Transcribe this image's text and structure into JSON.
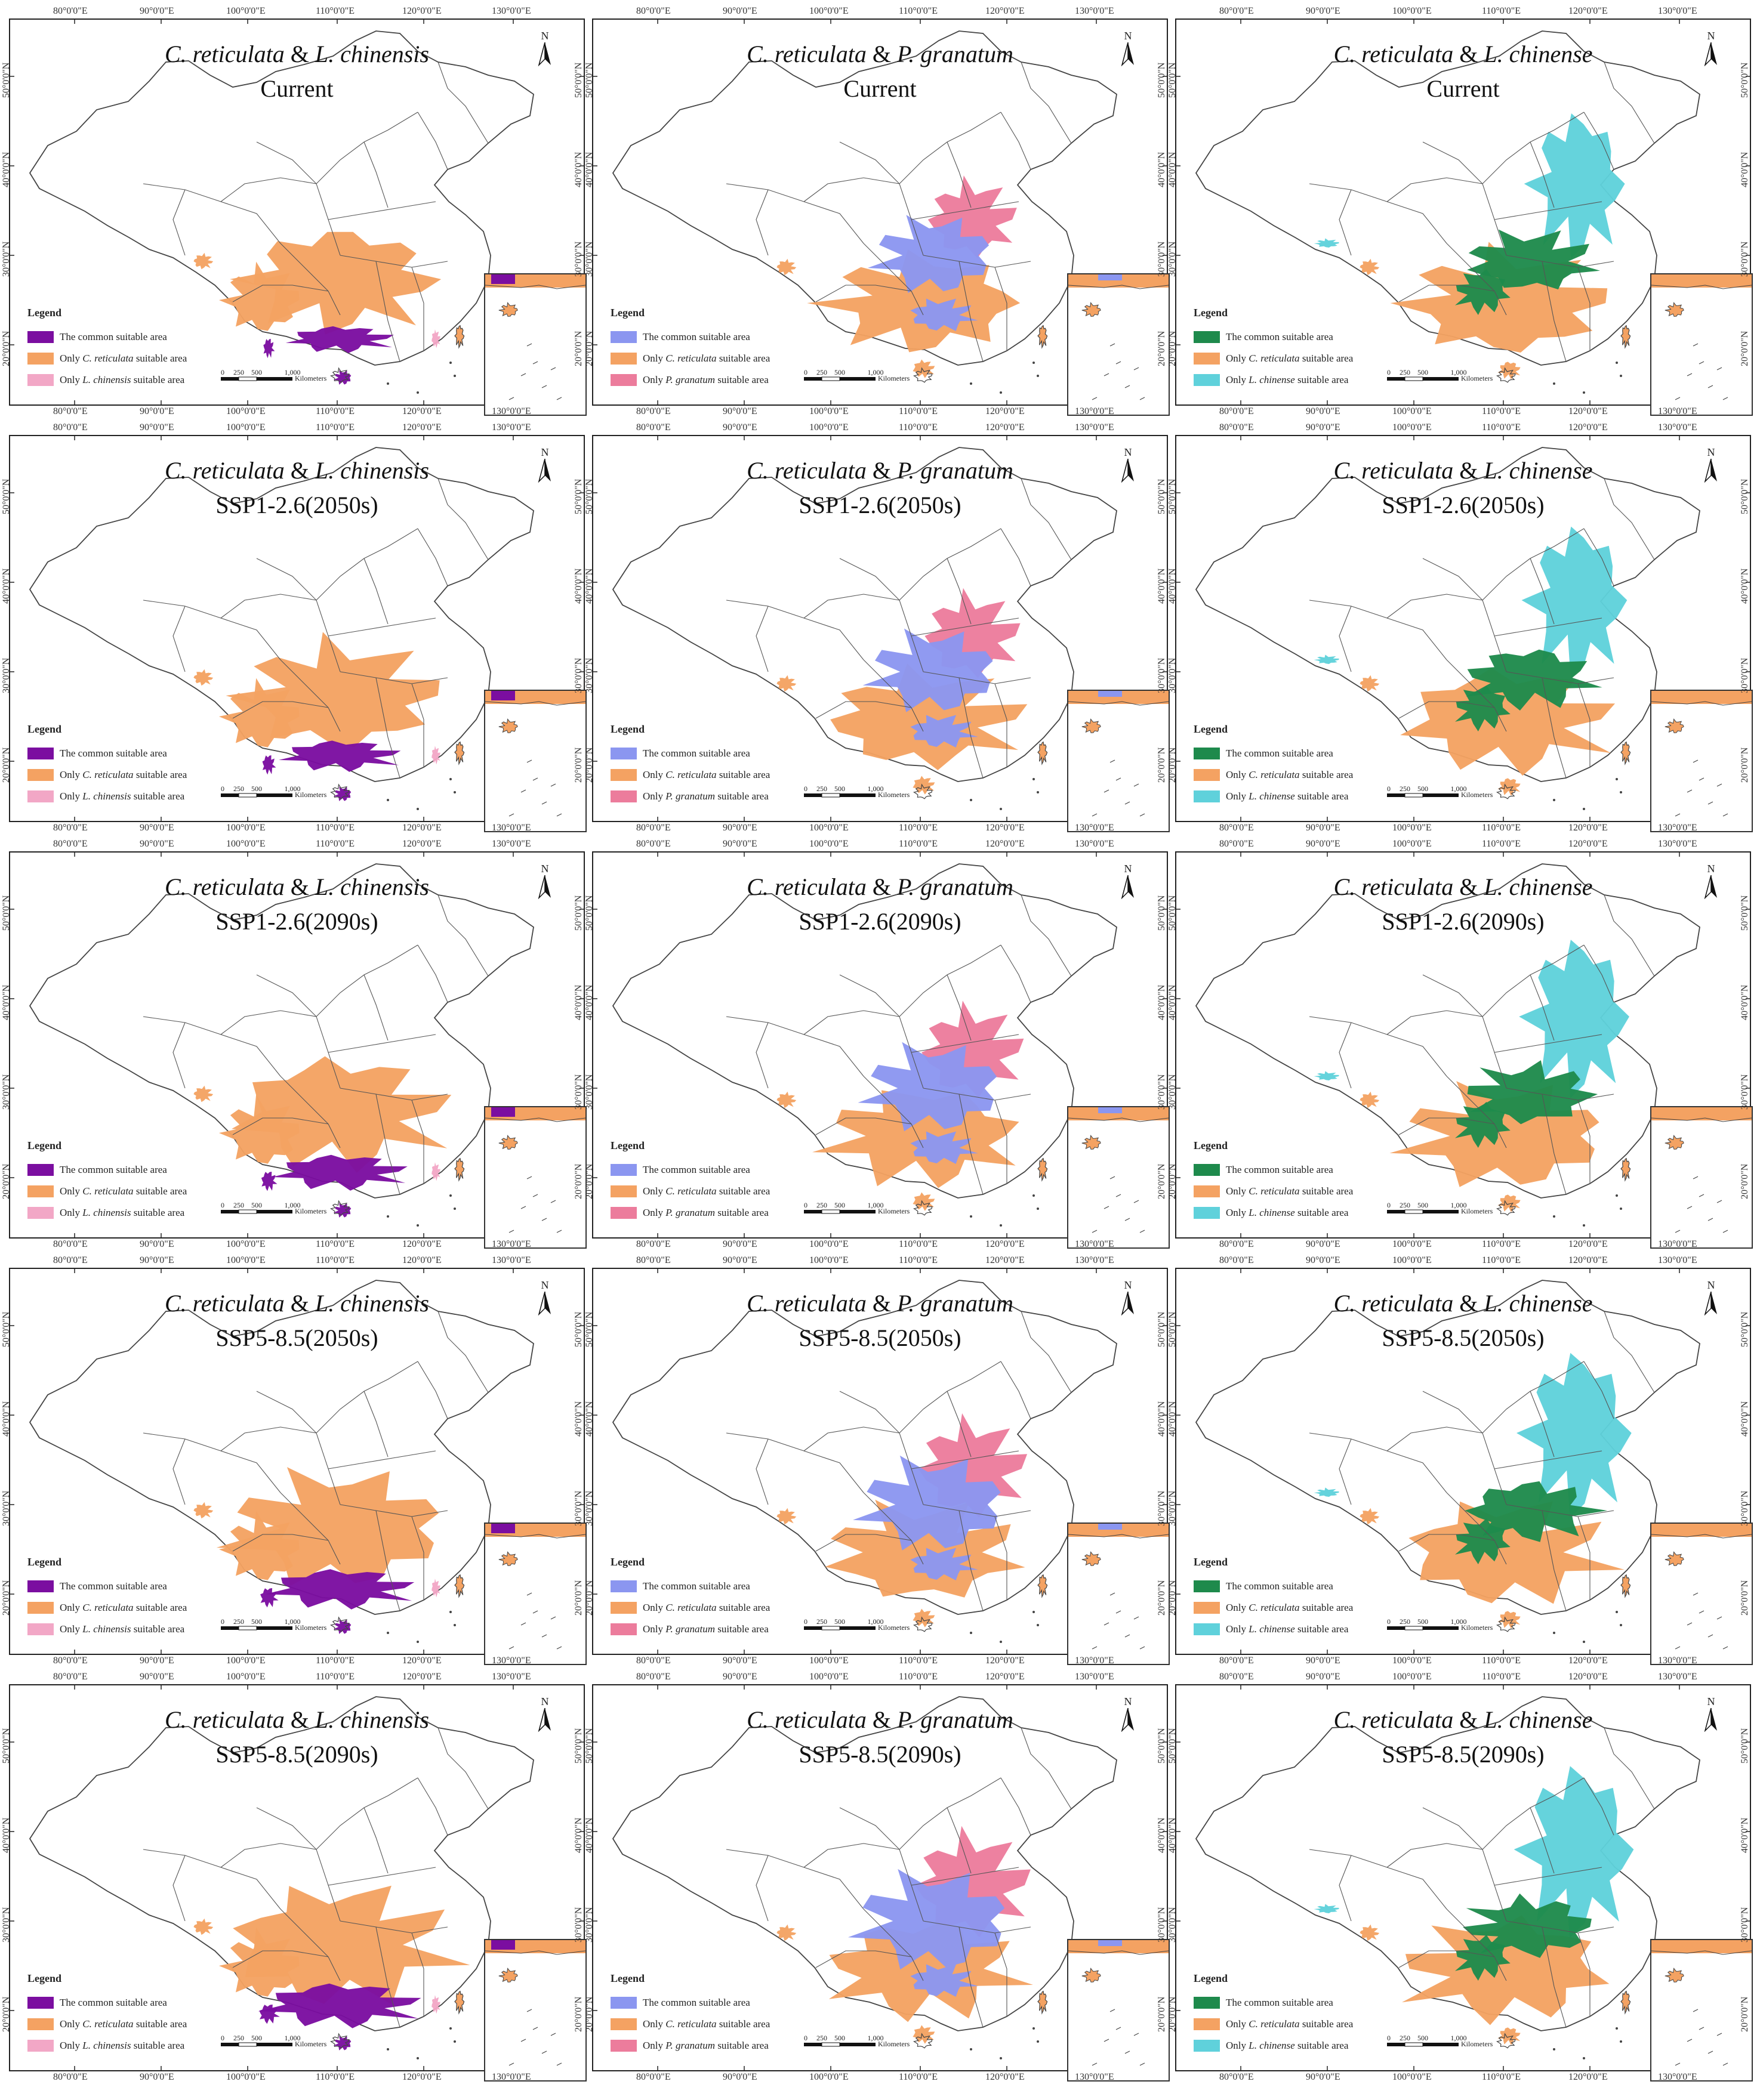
{
  "map_labels": {
    "lon_ticks": [
      "80°0'0\"E",
      "90°0'0\"E",
      "100°0'0\"E",
      "110°0'0\"E",
      "120°0'0\"E",
      "130°0'0\"E"
    ],
    "lat_ticks": [
      "50°0'0\"N",
      "40°0'0\"N",
      "30°0'0\"N",
      "20°0'0\"N"
    ],
    "north_label": "N",
    "legend_title": "Legend",
    "common_label": "The common suitable area",
    "scale_ticks": [
      "0",
      "250",
      "500",
      "1,000"
    ],
    "scale_unit": "Kilometers"
  },
  "species_pairs": [
    {
      "title_a": "C. reticulata",
      "amp": "&",
      "title_b": "L. chinensis",
      "legend_only_a_prefix": "Only",
      "legend_only_a_name": "C. reticulata",
      "legend_only_a_suffix": "suitable area",
      "legend_only_b_prefix": "Only",
      "legend_only_b_name": "L. chinensis",
      "legend_only_b_suffix": "suitable area",
      "colors": {
        "common": "#7B0EA0",
        "only_a": "#F4A262",
        "only_b": "#F2A7C6"
      }
    },
    {
      "title_a": "C. reticulata",
      "amp": "&",
      "title_b": "P. granatum",
      "legend_only_a_prefix": "Only",
      "legend_only_a_name": "C. reticulata",
      "legend_only_a_suffix": "suitable area",
      "legend_only_b_prefix": "Only",
      "legend_only_b_name": "P. granatum",
      "legend_only_b_suffix": "suitable area",
      "colors": {
        "common": "#8B96F0",
        "only_a": "#F4A262",
        "only_b": "#EC7C9C"
      }
    },
    {
      "title_a": "C. reticulata",
      "amp": "&",
      "title_b": "L. chinense",
      "legend_only_a_prefix": "Only",
      "legend_only_a_name": "C. reticulata",
      "legend_only_a_suffix": "suitable area",
      "legend_only_b_prefix": "Only",
      "legend_only_b_name": "L. chinense",
      "legend_only_b_suffix": "suitable area",
      "colors": {
        "common": "#1E8A4C",
        "only_a": "#F4A262",
        "only_b": "#5FD1DB"
      }
    }
  ],
  "periods": [
    "Current",
    "SSP1-2.6(2050s)",
    "SSP1-2.6(2090s)",
    "SSP5-8.5(2050s)",
    "SSP5-8.5(2090s)"
  ],
  "panels": [
    {
      "id": "r1c1",
      "pair": 0,
      "period": 0,
      "title_a": "C. reticulata",
      "amp": "&",
      "title_b": "L. chinensis",
      "period_label": "Current"
    },
    {
      "id": "r1c2",
      "pair": 1,
      "period": 0,
      "title_a": "C. reticulata",
      "amp": "&",
      "title_b": "P. granatum",
      "period_label": "Current"
    },
    {
      "id": "r1c3",
      "pair": 2,
      "period": 0,
      "title_a": "C. reticulata",
      "amp": "&",
      "title_b": "L. chinense",
      "period_label": "Current"
    },
    {
      "id": "r2c1",
      "pair": 0,
      "period": 1,
      "title_a": "C. reticulata",
      "amp": "&",
      "title_b": "L. chinensis",
      "period_label": "SSP1-2.6(2050s)"
    },
    {
      "id": "r2c2",
      "pair": 1,
      "period": 1,
      "title_a": "C. reticulata",
      "amp": "&",
      "title_b": "P. granatum",
      "period_label": "SSP1-2.6(2050s)"
    },
    {
      "id": "r2c3",
      "pair": 2,
      "period": 1,
      "title_a": "C. reticulata",
      "amp": "&",
      "title_b": "L. chinense",
      "period_label": "SSP1-2.6(2050s)"
    },
    {
      "id": "r3c1",
      "pair": 0,
      "period": 2,
      "title_a": "C. reticulata",
      "amp": "&",
      "title_b": "L. chinensis",
      "period_label": "SSP1-2.6(2090s)"
    },
    {
      "id": "r3c2",
      "pair": 1,
      "period": 2,
      "title_a": "C. reticulata",
      "amp": "&",
      "title_b": "P. granatum",
      "period_label": "SSP1-2.6(2090s)"
    },
    {
      "id": "r3c3",
      "pair": 2,
      "period": 2,
      "title_a": "C. reticulata",
      "amp": "&",
      "title_b": "L. chinense",
      "period_label": "SSP1-2.6(2090s)"
    },
    {
      "id": "r4c1",
      "pair": 0,
      "period": 3,
      "title_a": "C. reticulata",
      "amp": "&",
      "title_b": "L. chinensis",
      "period_label": "SSP5-8.5(2050s)"
    },
    {
      "id": "r4c2",
      "pair": 1,
      "period": 3,
      "title_a": "C. reticulata",
      "amp": "&",
      "title_b": "P. granatum",
      "period_label": "SSP5-8.5(2050s)"
    },
    {
      "id": "r4c3",
      "pair": 2,
      "period": 3,
      "title_a": "C. reticulata",
      "amp": "&",
      "title_b": "L. chinense",
      "period_label": "SSP5-8.5(2050s)"
    },
    {
      "id": "r5c1",
      "pair": 0,
      "period": 4,
      "title_a": "C. reticulata",
      "amp": "&",
      "title_b": "L. chinensis",
      "period_label": "SSP5-8.5(2090s)"
    },
    {
      "id": "r5c2",
      "pair": 1,
      "period": 4,
      "title_a": "C. reticulata",
      "amp": "&",
      "title_b": "P. granatum",
      "period_label": "SSP5-8.5(2090s)"
    },
    {
      "id": "r5c3",
      "pair": 2,
      "period": 4,
      "title_a": "C. reticulata",
      "amp": "&",
      "title_b": "L. chinense",
      "period_label": "SSP5-8.5(2090s)"
    }
  ]
}
